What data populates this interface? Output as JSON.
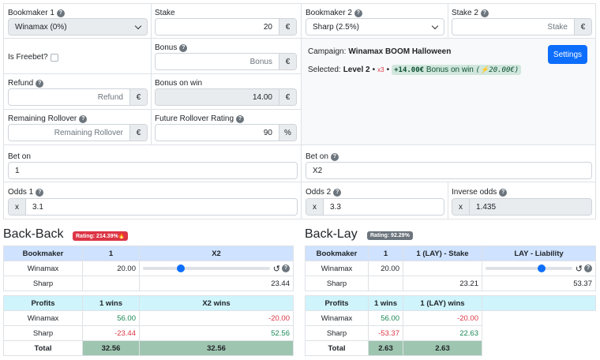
{
  "bookmaker1": {
    "label": "Bookmaker 1",
    "value": "Winamax (0%)"
  },
  "stake1": {
    "label": "Stake",
    "value": "20",
    "suffix": "€"
  },
  "bookmaker2": {
    "label": "Bookmaker 2",
    "value": "Sharp (2.5%)"
  },
  "stake2": {
    "label": "Stake 2",
    "placeholder": "Stake",
    "suffix": "€"
  },
  "freebet": {
    "label": "Is Freebet?"
  },
  "bonus": {
    "label": "Bonus",
    "placeholder": "Bonus",
    "suffix": "€"
  },
  "campaign": {
    "prefix": "Campaign:",
    "name": "Winamax BOOM Halloween",
    "selected_prefix": "Selected:",
    "level": "Level 2",
    "dot": "•",
    "mult": "x3",
    "bonus_amount": "+14.00€",
    "bonus_text": "Bonus on win",
    "bonus_extra": "(⚡20.00€)",
    "settings_label": "Settings"
  },
  "refund": {
    "label": "Refund",
    "placeholder": "Refund",
    "suffix": "€"
  },
  "bonus_on_win": {
    "label": "Bonus on win",
    "value": "14.00",
    "suffix": "€"
  },
  "remaining_rollover": {
    "label": "Remaining Rollover",
    "placeholder": "Remaining Rollover",
    "suffix": "€"
  },
  "future_rollover": {
    "label": "Future Rollover Rating",
    "value": "90",
    "suffix": "%"
  },
  "bet_on1": {
    "label": "Bet on",
    "value": "1"
  },
  "bet_on2": {
    "label": "Bet on",
    "value": "X2"
  },
  "odds1": {
    "label": "Odds 1",
    "prefix": "x",
    "value": "3.1"
  },
  "odds2": {
    "label": "Odds 2",
    "prefix": "x",
    "value": "3.3"
  },
  "inverse_odds": {
    "label": "Inverse odds",
    "prefix": "x",
    "value": "1.435"
  },
  "backback": {
    "title": "Back-Back",
    "badge": "Rating: 214.39%🔥",
    "headers": [
      "Bookmaker",
      "1",
      "X2"
    ],
    "rows": [
      {
        "name": "Winamax",
        "v1": "20.00",
        "v2": ""
      },
      {
        "name": "Sharp",
        "v1": "",
        "v2": "23.44"
      }
    ],
    "profit_headers": [
      "Profits",
      "1 wins",
      "X2 wins"
    ],
    "profit_rows": [
      {
        "name": "Winamax",
        "a": "56.00",
        "b": "-20.00"
      },
      {
        "name": "Sharp",
        "a": "-23.44",
        "b": "52.56"
      }
    ],
    "total": {
      "label": "Total",
      "a": "32.56",
      "b": "32.56"
    },
    "slider_level": 0.3
  },
  "backlay": {
    "title": "Back-Lay",
    "badge": "Rating: 92.29%",
    "headers": [
      "Bookmaker",
      "1",
      "1 (LAY) - Stake",
      "LAY - Liability"
    ],
    "rows": [
      {
        "name": "Winamax",
        "v1": "20.00",
        "v2": "",
        "v3": ""
      },
      {
        "name": "Sharp",
        "v1": "",
        "v2": "23.21",
        "v3": "53.37"
      }
    ],
    "profit_headers": [
      "Profits",
      "1 wins",
      "1 (LAY) wins",
      ""
    ],
    "profit_rows": [
      {
        "name": "Winamax",
        "a": "56.00",
        "b": "-20.00"
      },
      {
        "name": "Sharp",
        "a": "-53.37",
        "b": "22.63"
      }
    ],
    "total": {
      "label": "Total",
      "a": "2.63",
      "b": "2.63"
    },
    "slider_level": 0.65
  },
  "colors": {
    "primary": "#0d6efd",
    "header_blue": "#cfe2ff",
    "header_cyan": "#cff4fc",
    "danger": "#dc3545",
    "success": "#198754",
    "badge_gray": "#6c757d"
  }
}
